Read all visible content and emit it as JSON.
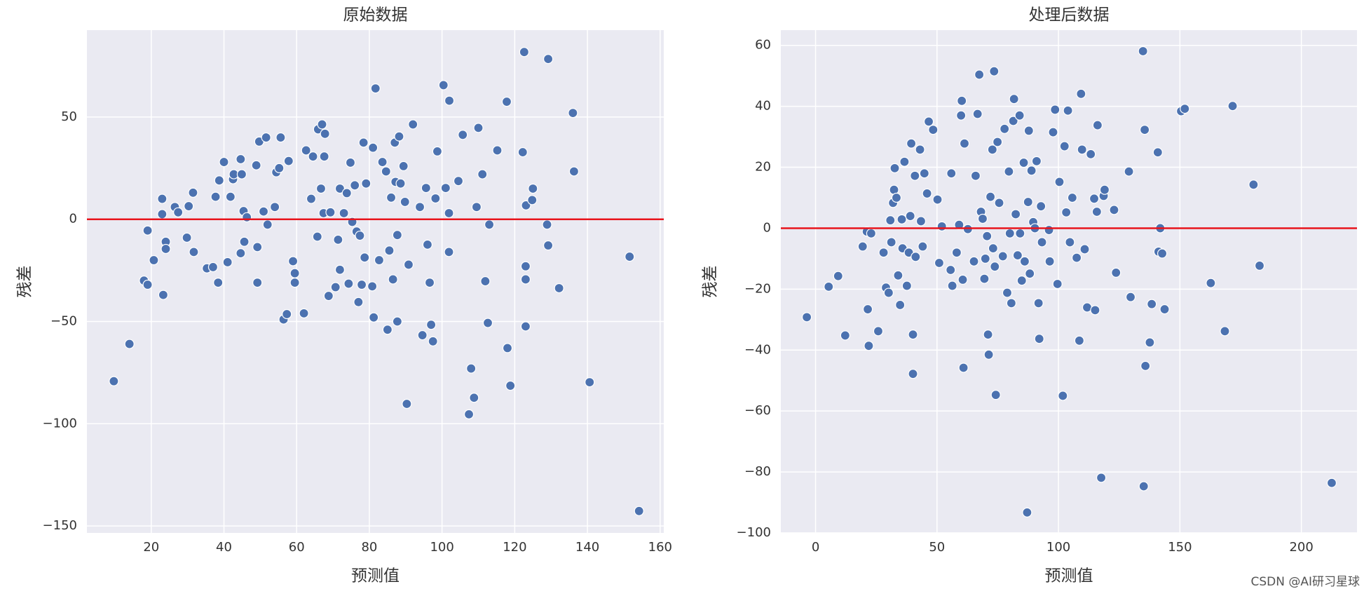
{
  "chart_data": [
    {
      "type": "scatter",
      "title": "原始数据",
      "xlabel": "预测值",
      "ylabel": "残差",
      "color": "#4c72b0",
      "grid": true,
      "hline": 0,
      "hline_color": "#e8141c",
      "xlim": [
        2.3,
        161
      ],
      "ylim": [
        -153.4,
        92.5
      ],
      "xticks": [
        20,
        40,
        60,
        80,
        100,
        120,
        140,
        160
      ],
      "yticks": [
        {
          "value": -150,
          "label": "−150"
        },
        {
          "value": -100,
          "label": "−100"
        },
        {
          "value": -50,
          "label": "−50"
        },
        0,
        50
      ],
      "x": [
        9.7,
        14,
        18,
        19,
        19,
        20.7,
        23.3,
        23,
        23,
        24,
        24,
        26.5,
        27.4,
        29.8,
        30.3,
        31.5,
        31.7,
        35.3,
        37,
        37.7,
        38.4,
        38.7,
        40,
        41,
        41.8,
        42.5,
        42.7,
        44.6,
        44.6,
        44.9,
        45.4,
        45.6,
        46.3,
        48.9,
        49.2,
        49.7,
        49.2,
        50.9,
        51.6,
        52,
        54,
        54.4,
        55.2,
        55.6,
        56.4,
        57.3,
        57.8,
        59,
        59.5,
        59.5,
        62,
        62.6,
        64,
        64.5,
        65.7,
        65.9,
        66.7,
        67,
        67.4,
        67.6,
        67.8,
        68.8,
        69.3,
        70.7,
        71.4,
        71.9,
        71.9,
        73,
        73.8,
        74.3,
        74.8,
        75.3,
        76,
        76.5,
        77,
        77.4,
        77.9,
        78.4,
        78.7,
        79.1,
        80.8,
        81,
        81.2,
        81.7,
        82.7,
        83.6,
        84.6,
        85,
        85.5,
        86,
        86.5,
        87,
        87.2,
        87.7,
        87.7,
        88.2,
        88.6,
        89.4,
        89.8,
        90.3,
        90.8,
        92,
        93.9,
        94.6,
        95.6,
        96,
        96.6,
        97,
        97.5,
        98.2,
        98.7,
        100.4,
        101,
        101.9,
        102,
        101.9,
        104.5,
        105.7,
        107.4,
        108,
        108.8,
        109.5,
        110,
        111.1,
        111.9,
        112.6,
        113,
        115.2,
        117.8,
        118,
        118.8,
        122.2,
        122.6,
        123,
        123,
        123,
        123.1,
        124.8,
        125,
        128.9,
        129.2,
        129.2,
        132.2,
        136,
        136.3,
        140.6,
        151.6,
        154.2
      ],
      "values": [
        -79.2,
        -61,
        -30,
        -32,
        -5.5,
        -20,
        -37,
        10,
        2.5,
        -11,
        -14.5,
        6,
        3.4,
        -9,
        6.4,
        13,
        -16,
        -24,
        -23.4,
        11,
        -31,
        19,
        28,
        -21,
        11,
        19.6,
        22,
        -16.6,
        29.4,
        22,
        4,
        -11,
        1,
        26.4,
        -31,
        38,
        -13.6,
        3.8,
        40,
        -2.6,
        6,
        23,
        25,
        40,
        -49,
        -46.4,
        28.5,
        -20.5,
        -26.4,
        -31,
        -46,
        33.7,
        10,
        30.7,
        -8.5,
        44,
        15,
        46.4,
        3,
        30.7,
        41.8,
        -37.5,
        3.4,
        -33.2,
        -10,
        15,
        -24.7,
        3,
        12.8,
        -31.5,
        27.7,
        -1.3,
        16.6,
        -6,
        -40.5,
        -8,
        -32,
        37.5,
        -18.7,
        17.5,
        -32.8,
        35,
        -48,
        64,
        -20,
        28,
        23.4,
        -54,
        -15.3,
        10.6,
        -29.4,
        37.5,
        18.3,
        -7.7,
        -50,
        40.5,
        17.5,
        26,
        8.5,
        -90.3,
        -22.2,
        46.4,
        6,
        -56.7,
        15.3,
        -12.4,
        -31,
        -51.6,
        -59.7,
        10.2,
        33.2,
        65.6,
        15.3,
        3,
        58,
        -16,
        18.7,
        41.3,
        -95.4,
        -73,
        -87.3,
        6,
        44.7,
        22,
        -30.3,
        -50.7,
        -2.6,
        33.7,
        57.5,
        -63,
        -81.4,
        32.8,
        81.8,
        -29.4,
        -52.4,
        -23,
        6.8,
        9.4,
        15,
        -2.6,
        78.4,
        -12.8,
        -33.7,
        52,
        23.4,
        -79.7,
        -18.3,
        -142.7
      ]
    },
    {
      "type": "scatter",
      "title": "处理后数据",
      "xlabel": "预测值",
      "ylabel": "残差",
      "color": "#4c72b0",
      "grid": true,
      "hline": 0,
      "hline_color": "#e8141c",
      "xlim": [
        -14.3,
        222.9
      ],
      "ylim": [
        -100,
        65
      ],
      "xticks": [
        0,
        50,
        100,
        150,
        200
      ],
      "yticks": [
        {
          "value": -100,
          "label": "−100"
        },
        {
          "value": -80,
          "label": "−80"
        },
        {
          "value": -60,
          "label": "−60"
        },
        {
          "value": -40,
          "label": "−40"
        },
        {
          "value": -20,
          "label": "−20"
        },
        0,
        20,
        40,
        60
      ],
      "x": [
        -3.6,
        5.4,
        9.3,
        12.2,
        19.4,
        21.1,
        21.5,
        21.9,
        22.9,
        25.8,
        28,
        29,
        30.1,
        30.8,
        31.2,
        31.9,
        32.3,
        32.6,
        33.3,
        34,
        34.8,
        35.5,
        35.8,
        36.6,
        37.6,
        38.4,
        39,
        39.4,
        40.1,
        40.1,
        40.9,
        41.2,
        43,
        43.4,
        44.1,
        44.8,
        45.9,
        46.6,
        48.4,
        50.2,
        50.9,
        52,
        55.6,
        55.9,
        56.3,
        58.1,
        59.1,
        59.9,
        60.2,
        60.6,
        60.9,
        61.3,
        62.7,
        65.2,
        65.9,
        66.7,
        67.4,
        68.1,
        68.8,
        69.5,
        69.9,
        70.6,
        71,
        71.3,
        72,
        72.8,
        73.1,
        73.5,
        73.8,
        74.2,
        74.9,
        75.6,
        77.1,
        77.8,
        78.9,
        79.6,
        80,
        80.6,
        81.4,
        81.7,
        82.4,
        83.2,
        84,
        84.2,
        84.9,
        85.7,
        86.1,
        87.1,
        87.5,
        87.8,
        88.2,
        88.9,
        89.6,
        90.3,
        91,
        91.8,
        92.1,
        92.8,
        93.2,
        96.1,
        96.4,
        97.8,
        98.6,
        99.6,
        100.4,
        101.8,
        102.5,
        103.2,
        103.9,
        104.7,
        105.7,
        107.5,
        108.6,
        109.3,
        109.7,
        110.8,
        111.8,
        113.3,
        114.7,
        115.1,
        115.8,
        116.1,
        117.6,
        118.6,
        119,
        122.9,
        123.7,
        129,
        129.7,
        134.8,
        135.1,
        135.5,
        135.8,
        137.6,
        138.4,
        140.9,
        141.2,
        141.9,
        142.7,
        143.7,
        150.5,
        152,
        162.7,
        168.5,
        171.7,
        180.3,
        182.8,
        212.5
      ],
      "values": [
        -29.2,
        -19.2,
        -15.7,
        -35.2,
        -6,
        -1.1,
        -26.6,
        -38.6,
        -1.7,
        -33.8,
        -8,
        -19.5,
        -21.2,
        2.6,
        -4.6,
        8.3,
        12.6,
        19.7,
        10,
        -15.5,
        -25.2,
        2.9,
        -6.6,
        21.8,
        -18.9,
        -8,
        4,
        27.8,
        -34.9,
        -47.8,
        17.2,
        -9.4,
        25.8,
        2.3,
        -6,
        18,
        11.4,
        35,
        32.3,
        9.4,
        -11.4,
        0.6,
        -13.7,
        18,
        -18.9,
        -8,
        1.1,
        37,
        41.8,
        -16.9,
        -45.8,
        27.8,
        -0.3,
        -10.9,
        17.2,
        37.5,
        50.4,
        5.4,
        3.1,
        -16.6,
        -10,
        -2.6,
        -34.9,
        -41.5,
        10.3,
        25.8,
        -6.6,
        51.5,
        -12.6,
        -54.7,
        28.3,
        8.3,
        -9.2,
        32.6,
        -21.2,
        18.6,
        -1.7,
        -24.6,
        35.2,
        42.4,
        4.6,
        -8.9,
        37,
        -1.7,
        -17.2,
        21.5,
        -10.9,
        -93.3,
        8.6,
        32,
        -14.9,
        18.9,
        2,
        0,
        22,
        -24.6,
        -36.3,
        7.2,
        -4.6,
        -0.6,
        -10.9,
        31.5,
        38.9,
        -18.3,
        15.2,
        -55,
        26.9,
        5.2,
        38.6,
        -4.6,
        10,
        -9.7,
        -36.9,
        44.1,
        25.8,
        -6.9,
        -26,
        24.3,
        9.7,
        -26.9,
        5.4,
        33.8,
        -81.9,
        10.6,
        12.6,
        6,
        -14.6,
        18.6,
        -22.6,
        58.1,
        -84.7,
        32.3,
        -45.2,
        -37.5,
        -24.9,
        24.9,
        -7.7,
        0,
        -8.3,
        -26.6,
        38.4,
        39.2,
        -18,
        -33.8,
        40.1,
        14.3,
        -12.3,
        -83.6
      ]
    }
  ],
  "watermark": "CSDN @AI研习星球"
}
